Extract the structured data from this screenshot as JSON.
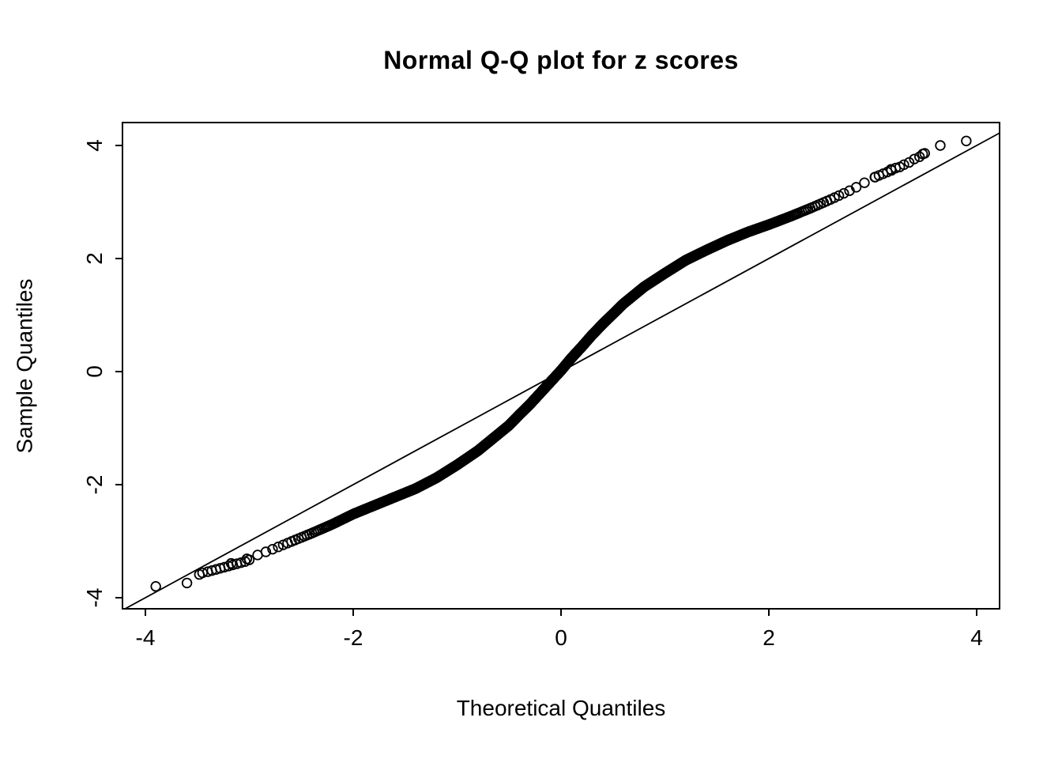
{
  "chart_data": {
    "type": "scatter",
    "title": "Normal Q-Q plot for z scores",
    "xlabel": "Theoretical Quantiles",
    "ylabel": "Sample Quantiles",
    "xlim": [
      -4.2,
      4.2
    ],
    "ylim": [
      -4.2,
      4.4
    ],
    "x_ticks": [
      -4,
      -2,
      0,
      2,
      4
    ],
    "y_ticks": [
      -4,
      -2,
      0,
      2,
      4
    ],
    "grid": false,
    "legend": "none",
    "marker": "open-circle",
    "point_color": "#000000",
    "background_color": "#ffffff",
    "reference_line": {
      "slope": 1,
      "intercept": 0,
      "color": "#000000",
      "style": "solid"
    },
    "n_points_approx": 2000,
    "curve_points": [
      [
        -3.9,
        -3.8
      ],
      [
        -3.6,
        -3.74
      ],
      [
        -3.45,
        -3.55
      ],
      [
        -3.3,
        -3.46
      ],
      [
        -3.15,
        -3.38
      ],
      [
        -3.0,
        -3.3
      ],
      [
        -2.8,
        -3.16
      ],
      [
        -2.6,
        -3.01
      ],
      [
        -2.4,
        -2.86
      ],
      [
        -2.2,
        -2.7
      ],
      [
        -2.0,
        -2.52
      ],
      [
        -1.8,
        -2.37
      ],
      [
        -1.6,
        -2.22
      ],
      [
        -1.4,
        -2.07
      ],
      [
        -1.2,
        -1.88
      ],
      [
        -1.0,
        -1.65
      ],
      [
        -0.8,
        -1.4
      ],
      [
        -0.6,
        -1.1
      ],
      [
        -0.5,
        -0.95
      ],
      [
        -0.4,
        -0.76
      ],
      [
        -0.3,
        -0.58
      ],
      [
        -0.2,
        -0.38
      ],
      [
        -0.1,
        -0.18
      ],
      [
        0,
        0.02
      ],
      [
        0.1,
        0.24
      ],
      [
        0.2,
        0.44
      ],
      [
        0.3,
        0.65
      ],
      [
        0.4,
        0.84
      ],
      [
        0.5,
        1.02
      ],
      [
        0.6,
        1.2
      ],
      [
        0.8,
        1.5
      ],
      [
        1.0,
        1.74
      ],
      [
        1.2,
        1.97
      ],
      [
        1.4,
        2.15
      ],
      [
        1.6,
        2.32
      ],
      [
        1.8,
        2.47
      ],
      [
        2.0,
        2.6
      ],
      [
        2.2,
        2.74
      ],
      [
        2.4,
        2.89
      ],
      [
        2.6,
        3.05
      ],
      [
        2.8,
        3.22
      ],
      [
        3.0,
        3.42
      ],
      [
        3.2,
        3.6
      ],
      [
        3.4,
        3.78
      ],
      [
        3.6,
        3.95
      ],
      [
        3.9,
        4.08
      ]
    ],
    "left_tail_points": [
      [
        -3.9,
        -3.8
      ],
      [
        -3.6,
        -3.74
      ],
      [
        -3.45,
        -3.56
      ],
      [
        -3.4,
        -3.54
      ],
      [
        -3.36,
        -3.52
      ],
      [
        -3.32,
        -3.5
      ],
      [
        -3.28,
        -3.48
      ],
      [
        -3.24,
        -3.46
      ],
      [
        -3.2,
        -3.44
      ],
      [
        -3.16,
        -3.42
      ],
      [
        -3.12,
        -3.4
      ],
      [
        -3.08,
        -3.38
      ],
      [
        -3.04,
        -3.36
      ],
      [
        -3.0,
        -3.33
      ]
    ],
    "right_tail_points": [
      [
        3.02,
        3.44
      ],
      [
        3.06,
        3.47
      ],
      [
        3.1,
        3.5
      ],
      [
        3.14,
        3.53
      ],
      [
        3.18,
        3.56
      ],
      [
        3.22,
        3.6
      ],
      [
        3.26,
        3.62
      ],
      [
        3.3,
        3.66
      ],
      [
        3.35,
        3.7
      ],
      [
        3.4,
        3.76
      ],
      [
        3.45,
        3.8
      ],
      [
        3.5,
        3.86
      ],
      [
        3.65,
        4.0
      ],
      [
        3.9,
        4.08
      ]
    ]
  }
}
